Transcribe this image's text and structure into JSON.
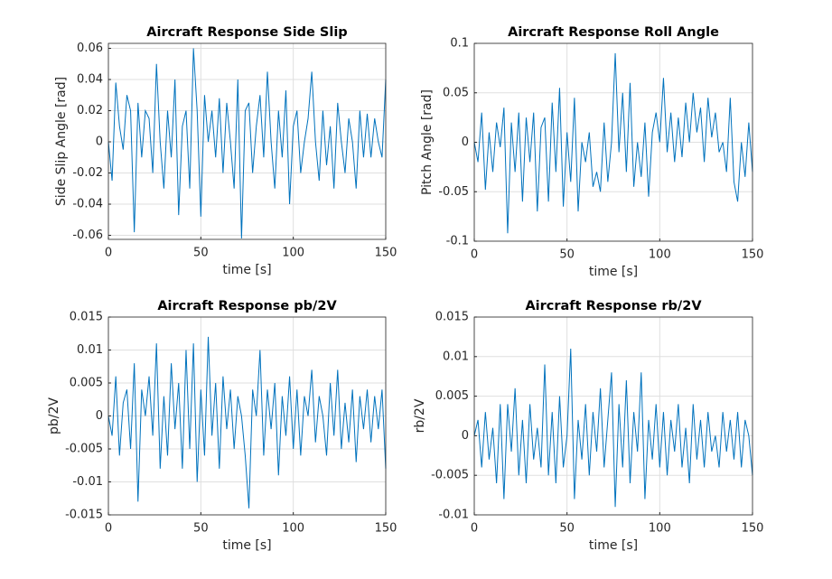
{
  "chart_data": [
    {
      "type": "line",
      "title": "Aircraft Response Side Slip",
      "xlabel": "time [s]",
      "ylabel": "Side Slip Angle [rad]",
      "x": [
        0,
        2,
        4,
        6,
        8,
        10,
        12,
        14,
        16,
        18,
        20,
        22,
        24,
        26,
        28,
        30,
        32,
        34,
        36,
        38,
        40,
        42,
        44,
        46,
        48,
        50,
        52,
        54,
        56,
        58,
        60,
        62,
        64,
        66,
        68,
        70,
        72,
        74,
        76,
        78,
        80,
        82,
        84,
        86,
        88,
        90,
        92,
        94,
        96,
        98,
        100,
        102,
        104,
        106,
        108,
        110,
        112,
        114,
        116,
        118,
        120,
        122,
        124,
        126,
        128,
        130,
        132,
        134,
        136,
        138,
        140,
        142,
        144,
        146,
        148,
        150
      ],
      "series": [
        {
          "color": "#0072bd",
          "values": [
            0,
            -0.025,
            0.038,
            0.01,
            -0.005,
            0.03,
            0.02,
            -0.058,
            0.025,
            -0.01,
            0.02,
            0.015,
            -0.02,
            0.05,
            0.0,
            -0.03,
            0.02,
            -0.01,
            0.04,
            -0.047,
            0.01,
            0.02,
            -0.03,
            0.06,
            0.02,
            -0.048,
            0.03,
            0.0,
            0.02,
            -0.01,
            0.028,
            -0.02,
            0.025,
            0.0,
            -0.03,
            0.04,
            -0.062,
            0.02,
            0.025,
            -0.02,
            0.01,
            0.03,
            -0.01,
            0.045,
            0.0,
            -0.03,
            0.02,
            -0.01,
            0.033,
            -0.04,
            0.01,
            0.02,
            -0.02,
            0.0,
            0.015,
            0.045,
            0.0,
            -0.025,
            0.02,
            -0.015,
            0.01,
            -0.03,
            0.025,
            0.0,
            -0.02,
            0.015,
            0.0,
            -0.03,
            0.02,
            -0.01,
            0.018,
            -0.01,
            0.015,
            0.0,
            -0.01,
            0.04
          ]
        }
      ],
      "xlim": [
        0,
        150
      ],
      "xticks": [
        0,
        50,
        100,
        150
      ],
      "ylim": [
        -0.0626,
        0.0632
      ],
      "yticks": [
        -0.06,
        -0.04,
        -0.02,
        0,
        0.02,
        0.04,
        0.06
      ],
      "grid": true
    },
    {
      "type": "line",
      "title": "Aircraft Response Roll Angle",
      "xlabel": "time [s]",
      "ylabel": "Pitch Angle [rad]",
      "x": [
        0,
        2,
        4,
        6,
        8,
        10,
        12,
        14,
        16,
        18,
        20,
        22,
        24,
        26,
        28,
        30,
        32,
        34,
        36,
        38,
        40,
        42,
        44,
        46,
        48,
        50,
        52,
        54,
        56,
        58,
        60,
        62,
        64,
        66,
        68,
        70,
        72,
        74,
        76,
        78,
        80,
        82,
        84,
        86,
        88,
        90,
        92,
        94,
        96,
        98,
        100,
        102,
        104,
        106,
        108,
        110,
        112,
        114,
        116,
        118,
        120,
        122,
        124,
        126,
        128,
        130,
        132,
        134,
        136,
        138,
        140,
        142,
        144,
        146,
        148,
        150
      ],
      "series": [
        {
          "color": "#0072bd",
          "values": [
            0,
            -0.02,
            0.03,
            -0.048,
            0.01,
            -0.03,
            0.02,
            -0.005,
            0.035,
            -0.092,
            0.02,
            -0.03,
            0.03,
            -0.06,
            0.025,
            -0.02,
            0.03,
            -0.07,
            0.015,
            0.025,
            -0.06,
            0.04,
            -0.03,
            0.055,
            -0.065,
            0.01,
            -0.04,
            0.045,
            -0.07,
            0.0,
            -0.02,
            0.01,
            -0.045,
            -0.03,
            -0.05,
            0.02,
            -0.04,
            0.0,
            0.09,
            -0.01,
            0.05,
            -0.03,
            0.06,
            -0.045,
            0.0,
            -0.035,
            0.02,
            -0.055,
            0.01,
            0.03,
            0.0,
            0.065,
            -0.01,
            0.03,
            -0.02,
            0.025,
            -0.015,
            0.04,
            0.0,
            0.05,
            0.01,
            0.035,
            -0.02,
            0.045,
            0.005,
            0.03,
            -0.01,
            0.0,
            -0.03,
            0.045,
            -0.04,
            -0.06,
            0.0,
            -0.035,
            0.02,
            -0.03
          ]
        }
      ],
      "xlim": [
        0,
        150
      ],
      "xticks": [
        0,
        50,
        100,
        150
      ],
      "ylim": [
        -0.1,
        0.1
      ],
      "yticks": [
        -0.1,
        -0.05,
        0,
        0.05,
        0.1
      ],
      "grid": true
    },
    {
      "type": "line",
      "title": "Aircraft Response pb/2V",
      "xlabel": "time [s]",
      "ylabel": "pb/2V",
      "x": [
        0,
        2,
        4,
        6,
        8,
        10,
        12,
        14,
        16,
        18,
        20,
        22,
        24,
        26,
        28,
        30,
        32,
        34,
        36,
        38,
        40,
        42,
        44,
        46,
        48,
        50,
        52,
        54,
        56,
        58,
        60,
        62,
        64,
        66,
        68,
        70,
        72,
        74,
        76,
        78,
        80,
        82,
        84,
        86,
        88,
        90,
        92,
        94,
        96,
        98,
        100,
        102,
        104,
        106,
        108,
        110,
        112,
        114,
        116,
        118,
        120,
        122,
        124,
        126,
        128,
        130,
        132,
        134,
        136,
        138,
        140,
        142,
        144,
        146,
        148,
        150
      ],
      "series": [
        {
          "color": "#0072bd",
          "values": [
            0,
            -0.003,
            0.006,
            -0.006,
            0.002,
            0.004,
            -0.005,
            0.008,
            -0.013,
            0.004,
            0.0,
            0.006,
            -0.003,
            0.011,
            -0.008,
            0.003,
            -0.006,
            0.008,
            -0.002,
            0.005,
            -0.008,
            0.01,
            -0.005,
            0.011,
            -0.01,
            0.004,
            -0.006,
            0.012,
            -0.003,
            0.005,
            -0.008,
            0.006,
            -0.002,
            0.004,
            -0.005,
            0.003,
            0.0,
            -0.006,
            -0.014,
            0.004,
            0.0,
            0.01,
            -0.006,
            0.004,
            -0.002,
            0.005,
            -0.009,
            0.003,
            -0.003,
            0.006,
            -0.005,
            0.004,
            -0.006,
            0.003,
            0.0,
            0.007,
            -0.004,
            0.003,
            0.0,
            -0.006,
            0.005,
            -0.003,
            0.007,
            -0.005,
            0.002,
            -0.004,
            0.004,
            -0.007,
            0.003,
            -0.002,
            0.004,
            -0.004,
            0.003,
            -0.002,
            0.004,
            -0.008
          ]
        }
      ],
      "xlim": [
        0,
        150
      ],
      "xticks": [
        0,
        50,
        100,
        150
      ],
      "ylim": [
        -0.015,
        0.015
      ],
      "yticks": [
        -0.015,
        -0.01,
        -0.005,
        0,
        0.005,
        0.01,
        0.015
      ],
      "grid": true
    },
    {
      "type": "line",
      "title": "Aircraft Response rb/2V",
      "xlabel": "time [s]",
      "ylabel": "rb/2V",
      "x": [
        0,
        2,
        4,
        6,
        8,
        10,
        12,
        14,
        16,
        18,
        20,
        22,
        24,
        26,
        28,
        30,
        32,
        34,
        36,
        38,
        40,
        42,
        44,
        46,
        48,
        50,
        52,
        54,
        56,
        58,
        60,
        62,
        64,
        66,
        68,
        70,
        72,
        74,
        76,
        78,
        80,
        82,
        84,
        86,
        88,
        90,
        92,
        94,
        96,
        98,
        100,
        102,
        104,
        106,
        108,
        110,
        112,
        114,
        116,
        118,
        120,
        122,
        124,
        126,
        128,
        130,
        132,
        134,
        136,
        138,
        140,
        142,
        144,
        146,
        148,
        150
      ],
      "series": [
        {
          "color": "#0072bd",
          "values": [
            0,
            0.002,
            -0.004,
            0.003,
            -0.003,
            0.001,
            -0.006,
            0.004,
            -0.008,
            0.004,
            -0.002,
            0.006,
            -0.005,
            0.002,
            -0.006,
            0.004,
            -0.003,
            0.001,
            -0.004,
            0.009,
            -0.005,
            0.003,
            -0.006,
            0.005,
            -0.004,
            0.0,
            0.011,
            -0.008,
            0.002,
            -0.003,
            0.004,
            -0.005,
            0.003,
            -0.002,
            0.006,
            -0.004,
            0.002,
            0.008,
            -0.009,
            0.004,
            -0.004,
            0.007,
            -0.006,
            0.003,
            -0.002,
            0.008,
            -0.008,
            0.002,
            -0.003,
            0.004,
            -0.004,
            0.003,
            -0.005,
            0.002,
            -0.002,
            0.004,
            -0.004,
            0.001,
            -0.006,
            0.004,
            -0.003,
            0.002,
            -0.004,
            0.003,
            -0.002,
            0.0,
            -0.004,
            0.003,
            -0.002,
            0.002,
            -0.003,
            0.003,
            -0.004,
            0.002,
            0.0,
            -0.005
          ]
        }
      ],
      "xlim": [
        0,
        150
      ],
      "xticks": [
        0,
        50,
        100,
        150
      ],
      "ylim": [
        -0.01,
        0.015
      ],
      "yticks": [
        -0.01,
        -0.005,
        0,
        0.005,
        0.01,
        0.015
      ],
      "grid": true
    }
  ]
}
